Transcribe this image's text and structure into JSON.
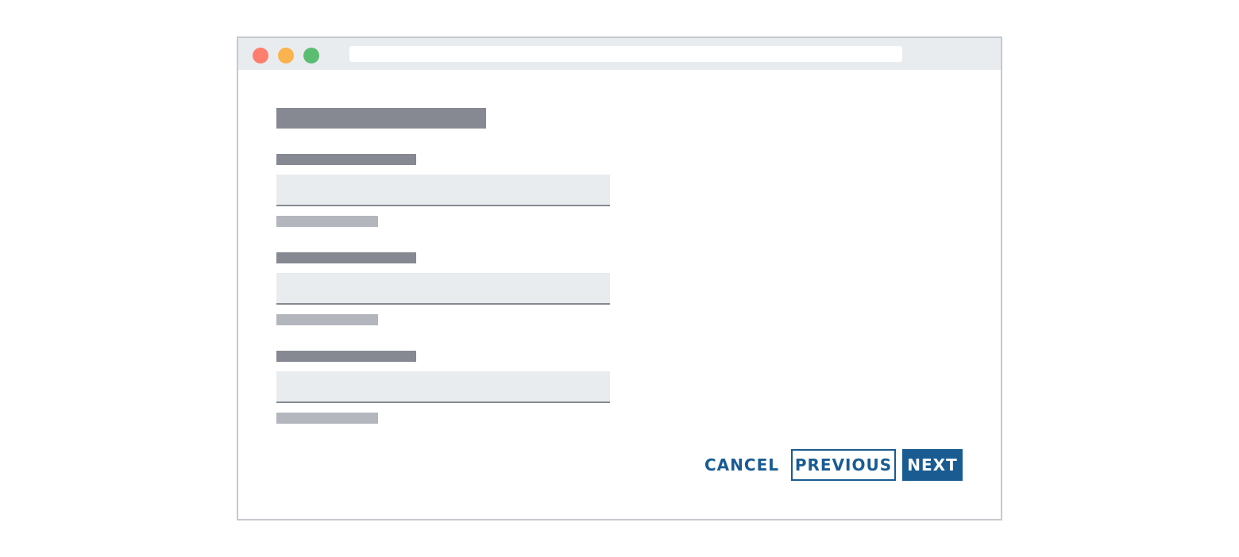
{
  "window": {
    "controls": [
      {
        "icon": "close-dot-icon",
        "color": "#fe7e6d"
      },
      {
        "icon": "minimize-dot-icon",
        "color": "#fbb34f"
      },
      {
        "icon": "maximize-dot-icon",
        "color": "#5bbd72"
      }
    ]
  },
  "form": {
    "fields": [
      {},
      {},
      {}
    ]
  },
  "actions": {
    "cancel_label": "CANCEL",
    "previous_label": "PREVIOUS",
    "next_label": "NEXT",
    "accent_color": "#1a5c92"
  }
}
